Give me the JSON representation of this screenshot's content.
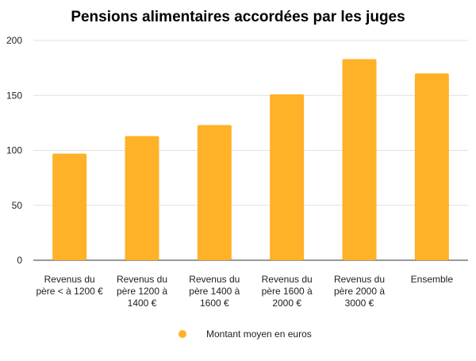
{
  "chart_data": {
    "type": "bar",
    "title": "Pensions alimentaires accordées par les juges",
    "xlabel": "",
    "ylabel": "",
    "ylim": [
      0,
      200
    ],
    "yticks": [
      0,
      50,
      100,
      150,
      200
    ],
    "grid": true,
    "legend_position": "bottom",
    "categories": [
      [
        "Revenus du",
        "père < à 1200 €"
      ],
      [
        "Revenus du",
        "père 1200 à",
        "1400 €"
      ],
      [
        "Revenus du",
        "père 1400 à",
        "1600 €"
      ],
      [
        "Revenus du",
        "père 1600 à",
        "2000 €"
      ],
      [
        "Revenus du",
        "père 2000 à",
        "3000 €"
      ],
      [
        "Ensemble"
      ]
    ],
    "series": [
      {
        "name": "Montant moyen en euros",
        "color": "#ffb128",
        "values": [
          97,
          113,
          123,
          151,
          183,
          170
        ]
      }
    ]
  }
}
